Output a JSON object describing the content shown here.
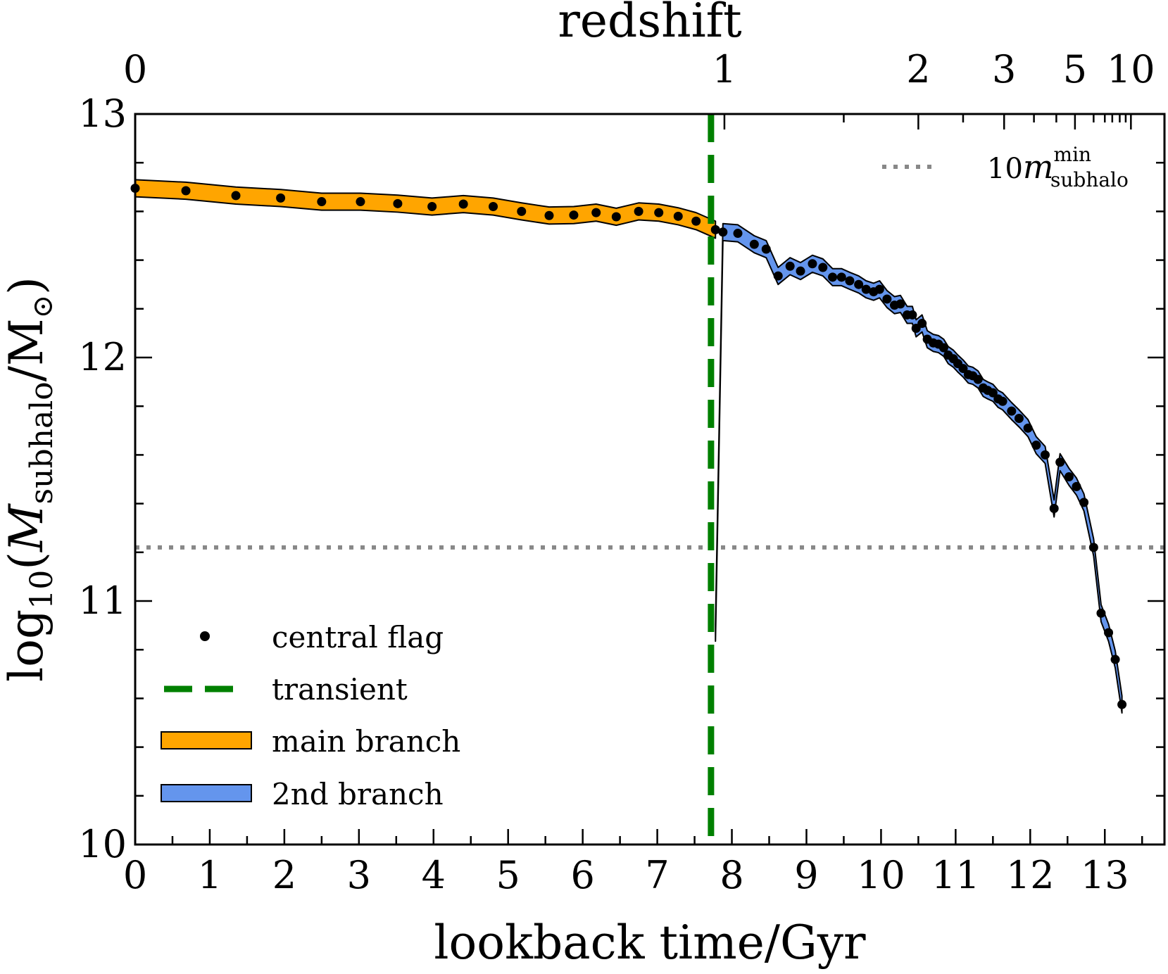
{
  "chart_data": {
    "type": "line",
    "top_axis_title": "redshift",
    "xlabel": "lookback time/Gyr",
    "ylabel_prefix": "log",
    "ylabel_sub1": "10",
    "ylabel_open": "(",
    "ylabel_m": "M",
    "ylabel_sub2": "subhalo",
    "ylabel_slash": "/M",
    "ylabel_sun": "⊙",
    "ylabel_close": ")",
    "xlim": [
      0,
      13.8
    ],
    "ylim": [
      10,
      13
    ],
    "x_ticks": [
      {
        "value": 0,
        "label": "0"
      },
      {
        "value": 1,
        "label": "1"
      },
      {
        "value": 2,
        "label": "2"
      },
      {
        "value": 3,
        "label": "3"
      },
      {
        "value": 4,
        "label": "4"
      },
      {
        "value": 5,
        "label": "5"
      },
      {
        "value": 6,
        "label": "6"
      },
      {
        "value": 7,
        "label": "7"
      },
      {
        "value": 8,
        "label": "8"
      },
      {
        "value": 9,
        "label": "9"
      },
      {
        "value": 10,
        "label": "10"
      },
      {
        "value": 11,
        "label": "11"
      },
      {
        "value": 12,
        "label": "12"
      },
      {
        "value": 13,
        "label": "13"
      }
    ],
    "y_ticks": [
      {
        "value": 10,
        "label": "10"
      },
      {
        "value": 11,
        "label": "11"
      },
      {
        "value": 12,
        "label": "12"
      },
      {
        "value": 13,
        "label": "13"
      }
    ],
    "top_ticks": [
      {
        "lookback": 0,
        "label": "0"
      },
      {
        "lookback": 7.9,
        "label": "1"
      },
      {
        "lookback": 10.5,
        "label": "2"
      },
      {
        "lookback": 11.65,
        "label": "3"
      },
      {
        "lookback": 12.6,
        "label": "5"
      },
      {
        "lookback": 13.35,
        "label": "10"
      }
    ],
    "transient_x": 7.72,
    "reference": {
      "y": 11.22,
      "label_prefix": "10",
      "label_m": "m",
      "label_sup": "min",
      "label_sub": "subhalo"
    },
    "legend": {
      "central": "central flag",
      "transient": "transient",
      "main": "main branch",
      "second": "2nd branch"
    },
    "colors": {
      "main": "#ffa500",
      "second": "#6495ed",
      "transient": "#008000",
      "reference": "#888888",
      "dots": "#000000"
    },
    "series": [
      {
        "name": "main branch",
        "band_halfwidth": 0.035,
        "x": [
          0.0,
          0.68,
          1.35,
          1.95,
          2.5,
          3.02,
          3.52,
          3.98,
          4.4,
          4.8,
          5.18,
          5.55,
          5.88,
          6.18,
          6.45,
          6.75,
          7.02,
          7.28,
          7.52,
          7.78
        ],
        "y": [
          12.695,
          12.685,
          12.665,
          12.655,
          12.64,
          12.64,
          12.632,
          12.62,
          12.63,
          12.62,
          12.6,
          12.583,
          12.585,
          12.595,
          12.578,
          12.6,
          12.595,
          12.58,
          12.56,
          12.525
        ]
      },
      {
        "name": "2nd branch",
        "band_halfwidth": 0.035,
        "x": [
          7.78,
          7.88,
          8.08,
          8.3,
          8.46,
          8.62,
          8.78,
          8.92,
          9.08,
          9.22,
          9.35,
          9.47,
          9.58,
          9.7,
          9.8,
          9.9,
          9.98,
          10.08,
          10.18,
          10.26,
          10.35,
          10.42,
          10.47,
          10.55,
          10.62,
          10.7,
          10.77,
          10.84,
          10.9,
          10.97,
          11.03,
          11.1,
          11.17,
          11.23,
          11.3,
          11.37,
          11.43,
          11.5,
          11.57,
          11.63,
          11.75,
          11.85,
          11.97,
          12.08,
          12.2,
          12.32,
          12.4,
          12.52,
          12.62,
          12.72,
          12.85,
          12.95,
          13.05,
          13.14,
          13.23
        ],
        "y": [
          10.87,
          12.515,
          12.51,
          12.465,
          12.445,
          12.335,
          12.375,
          12.355,
          12.385,
          12.37,
          12.33,
          12.33,
          12.315,
          12.3,
          12.28,
          12.27,
          12.28,
          12.24,
          12.215,
          12.22,
          12.175,
          12.175,
          12.12,
          12.14,
          12.075,
          12.06,
          12.055,
          12.04,
          12.01,
          11.995,
          11.975,
          11.955,
          11.93,
          11.925,
          11.91,
          11.875,
          11.865,
          11.855,
          11.83,
          11.82,
          11.78,
          11.75,
          11.71,
          11.64,
          11.6,
          11.38,
          11.57,
          11.51,
          11.47,
          11.405,
          11.22,
          10.95,
          10.87,
          10.76,
          10.575
        ]
      }
    ],
    "central_flag": {
      "x": [
        0.0,
        0.68,
        1.35,
        1.95,
        2.5,
        3.02,
        3.52,
        3.98,
        4.4,
        4.8,
        5.18,
        5.55,
        5.88,
        6.18,
        6.45,
        6.75,
        7.02,
        7.28,
        7.52,
        7.78,
        7.88,
        8.08,
        8.3,
        8.46,
        8.62,
        8.78,
        8.92,
        9.08,
        9.22,
        9.35,
        9.47,
        9.58,
        9.7,
        9.8,
        9.9,
        9.98,
        10.08,
        10.18,
        10.26,
        10.35,
        10.42,
        10.47,
        10.55,
        10.62,
        10.7,
        10.77,
        10.84,
        10.9,
        10.97,
        11.03,
        11.1,
        11.17,
        11.23,
        11.3,
        11.37,
        11.43,
        11.5,
        11.57,
        11.63,
        11.75,
        11.85,
        11.97,
        12.08,
        12.2,
        12.32,
        12.4,
        12.52,
        12.62,
        12.72,
        12.85,
        12.95,
        13.05,
        13.14,
        13.23
      ],
      "y": [
        12.695,
        12.685,
        12.665,
        12.655,
        12.64,
        12.64,
        12.632,
        12.62,
        12.63,
        12.62,
        12.6,
        12.583,
        12.585,
        12.595,
        12.578,
        12.6,
        12.595,
        12.58,
        12.56,
        12.525,
        12.515,
        12.51,
        12.465,
        12.445,
        12.335,
        12.375,
        12.355,
        12.385,
        12.37,
        12.33,
        12.33,
        12.315,
        12.3,
        12.28,
        12.27,
        12.28,
        12.24,
        12.215,
        12.22,
        12.175,
        12.175,
        12.12,
        12.14,
        12.075,
        12.06,
        12.055,
        12.04,
        12.01,
        11.995,
        11.975,
        11.955,
        11.93,
        11.925,
        11.91,
        11.875,
        11.865,
        11.855,
        11.83,
        11.82,
        11.78,
        11.75,
        11.71,
        11.64,
        11.6,
        11.38,
        11.57,
        11.51,
        11.47,
        11.405,
        11.22,
        10.95,
        10.87,
        10.76,
        10.575
      ]
    }
  }
}
